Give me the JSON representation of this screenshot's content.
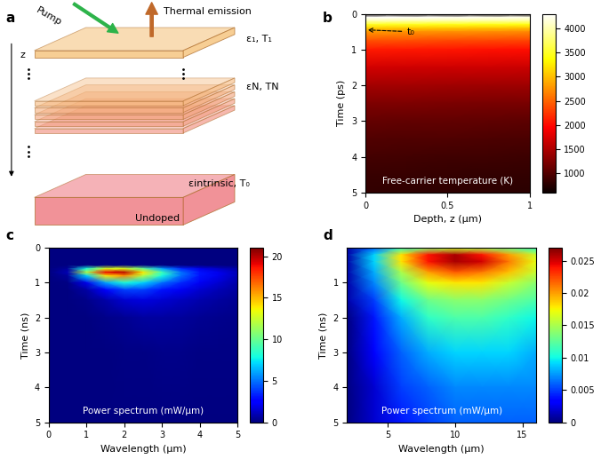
{
  "diagram": {
    "label": "a",
    "pump": "Pump",
    "emission": "Thermal emission",
    "axis": "z",
    "top_layer": "ε₁, T₁",
    "mid_layer": "εN, TN",
    "bottom_name": "Undoped",
    "bottom_layer": "εintrinsic, T₀"
  },
  "chart_data": [
    {
      "type": "heatmap",
      "label": "b",
      "color": "hot",
      "inset_text": "Free-carrier temperature (K)",
      "xlabel": "Depth, z (μm)",
      "ylabel": "Time (ps)",
      "xlim": [
        0,
        1
      ],
      "xticks": [
        0,
        0.5,
        1
      ],
      "ylim": [
        5,
        0
      ],
      "yticks": [
        0,
        1,
        2,
        3,
        4,
        5
      ],
      "annotation": {
        "text": "t₀",
        "time": 0.45
      },
      "x": [
        0,
        0.25,
        0.5,
        0.75,
        1
      ],
      "y": [
        0,
        0.1,
        0.2,
        0.3,
        0.4,
        0.5,
        0.75,
        1,
        1.5,
        2,
        2.5,
        3,
        3.5,
        4,
        4.5,
        5
      ],
      "cells": [
        [
          600,
          600,
          600,
          600,
          600
        ],
        [
          4300,
          4280,
          4260,
          4240,
          4220
        ],
        [
          4000,
          3980,
          3960,
          3940,
          3920
        ],
        [
          3500,
          3480,
          3460,
          3440,
          3420
        ],
        [
          3100,
          3080,
          3060,
          3040,
          3020
        ],
        [
          2800,
          2780,
          2760,
          2740,
          2720
        ],
        [
          2400,
          2380,
          2360,
          2340,
          2320
        ],
        [
          2100,
          2080,
          2060,
          2040,
          2020
        ],
        [
          1700,
          1690,
          1680,
          1670,
          1660
        ],
        [
          1450,
          1440,
          1430,
          1420,
          1410
        ],
        [
          1250,
          1240,
          1230,
          1220,
          1210
        ],
        [
          1100,
          1090,
          1080,
          1070,
          1060
        ],
        [
          1000,
          990,
          980,
          970,
          960
        ],
        [
          920,
          910,
          900,
          890,
          880
        ],
        [
          860,
          850,
          840,
          830,
          820
        ],
        [
          820,
          810,
          800,
          790,
          780
        ]
      ],
      "clim": [
        600,
        4300
      ],
      "cticks": [
        1000,
        1500,
        2000,
        2500,
        3000,
        3500,
        4000
      ]
    },
    {
      "type": "heatmap",
      "label": "c",
      "color": "jet",
      "inset_text": "Power spectrum (mW/μm)",
      "xlabel": "Wavelength (μm)",
      "ylabel": "Time (ns)",
      "xlim": [
        0,
        5
      ],
      "xticks": [
        0,
        1,
        2,
        3,
        4,
        5
      ],
      "ylim": [
        5,
        0
      ],
      "yticks": [
        0,
        1,
        2,
        3,
        4,
        5
      ],
      "x": [
        0,
        0.5,
        1,
        1.5,
        2,
        2.5,
        3,
        3.5,
        4,
        4.5,
        5
      ],
      "y": [
        0,
        0.5,
        0.6,
        0.7,
        0.8,
        1.0,
        1.2,
        1.5,
        2,
        3,
        5
      ],
      "cells": [
        [
          0,
          0,
          0,
          0,
          0,
          0,
          0,
          0,
          0,
          0,
          0
        ],
        [
          0,
          0,
          0,
          0,
          0,
          0,
          0,
          0,
          0,
          0,
          0
        ],
        [
          0,
          0.5,
          8,
          13,
          13,
          10,
          6,
          3.5,
          2,
          1.3,
          0.7
        ],
        [
          0,
          1,
          12,
          19,
          20,
          14,
          9,
          5,
          3,
          2,
          1
        ],
        [
          0,
          0.5,
          7,
          14,
          16,
          12,
          8,
          5,
          3,
          2,
          1
        ],
        [
          0,
          0.1,
          2,
          6,
          8,
          7,
          5,
          3.5,
          2.2,
          1.5,
          0.8
        ],
        [
          0,
          0,
          0.7,
          2.5,
          4,
          4,
          3,
          2.2,
          1.5,
          1,
          0.6
        ],
        [
          0,
          0,
          0.2,
          0.8,
          1.5,
          1.8,
          1.5,
          1.2,
          0.9,
          0.6,
          0.4
        ],
        [
          0,
          0,
          0,
          0.2,
          0.4,
          0.6,
          0.6,
          0.5,
          0.4,
          0.3,
          0.2
        ],
        [
          0,
          0,
          0,
          0,
          0.1,
          0.1,
          0.2,
          0.2,
          0.15,
          0.1,
          0.1
        ],
        [
          0,
          0,
          0,
          0,
          0,
          0,
          0.05,
          0.05,
          0.05,
          0.05,
          0.05
        ]
      ],
      "clim": [
        0,
        21
      ],
      "cticks": [
        0,
        5,
        10,
        15,
        20
      ]
    },
    {
      "type": "heatmap",
      "label": "d",
      "color": "jet",
      "inset_text": "Power spectrum (mW/μm)",
      "xlabel": "Wavelength (μm)",
      "ylabel": "Time (ns)",
      "xlim": [
        2,
        16
      ],
      "xticks": [
        5,
        10,
        15
      ],
      "ylim": [
        5,
        0
      ],
      "yticks": [
        1,
        2,
        3,
        4,
        5
      ],
      "x": [
        2,
        4,
        6,
        8,
        10,
        12,
        14,
        16
      ],
      "y": [
        0,
        0.2,
        0.4,
        0.7,
        1,
        1.5,
        2,
        3,
        4,
        5
      ],
      "cells": [
        [
          0.001,
          0.006,
          0.011,
          0.014,
          0.016,
          0.015,
          0.013,
          0.011
        ],
        [
          0.001,
          0.009,
          0.018,
          0.024,
          0.026,
          0.024,
          0.02,
          0.016
        ],
        [
          0.001,
          0.009,
          0.018,
          0.024,
          0.026,
          0.025,
          0.021,
          0.017
        ],
        [
          0.001,
          0.008,
          0.015,
          0.02,
          0.022,
          0.021,
          0.019,
          0.016
        ],
        [
          0.001,
          0.007,
          0.013,
          0.017,
          0.018,
          0.018,
          0.016,
          0.014
        ],
        [
          0.001,
          0.005,
          0.01,
          0.013,
          0.014,
          0.014,
          0.013,
          0.012
        ],
        [
          0,
          0.004,
          0.008,
          0.011,
          0.012,
          0.012,
          0.011,
          0.01
        ],
        [
          0,
          0.003,
          0.006,
          0.008,
          0.009,
          0.009,
          0.009,
          0.008
        ],
        [
          0,
          0.002,
          0.005,
          0.006,
          0.007,
          0.007,
          0.007,
          0.007
        ],
        [
          0,
          0.002,
          0.004,
          0.005,
          0.006,
          0.006,
          0.006,
          0.006
        ]
      ],
      "clim": [
        0,
        0.027
      ],
      "cticks": [
        0,
        0.005,
        0.01,
        0.015,
        0.02,
        0.025
      ]
    }
  ]
}
